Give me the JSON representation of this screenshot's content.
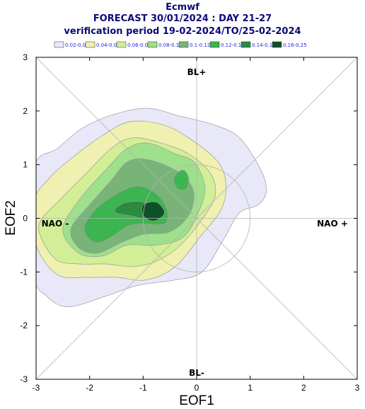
{
  "title": {
    "line1": "Ecmwf",
    "line2": "FORECAST 30/01/2024 : DAY 21-27",
    "line3": "verification period 19-02-2024/TO/25-02-2024"
  },
  "legend": {
    "entries": [
      {
        "label": "0.02-0.04",
        "color": "#e8e8f8"
      },
      {
        "label": "0.04-0.06",
        "color": "#f0f0b0"
      },
      {
        "label": "0.06-0.08",
        "color": "#d2ee96"
      },
      {
        "label": "0.08-0.1",
        "color": "#9ee08c"
      },
      {
        "label": "0.1-0.12",
        "color": "#78b478"
      },
      {
        "label": "0.12-0.14",
        "color": "#3cb450"
      },
      {
        "label": "0.14-0.16",
        "color": "#2a8c3c"
      },
      {
        "label": "0.16-0.25",
        "color": "#0f5028"
      }
    ]
  },
  "regions": {
    "top": "BL+",
    "bottom": "BL-",
    "left": "NAO -",
    "right": "NAO +"
  },
  "chart_data": {
    "type": "contour",
    "xlabel": "EOF1",
    "ylabel": "EOF2",
    "xlim": [
      -3,
      3
    ],
    "ylim": [
      -3,
      3
    ],
    "x_ticks": [
      "-3",
      "-2",
      "-1",
      "0",
      "1",
      "2",
      "3"
    ],
    "y_ticks": [
      "-3",
      "-2",
      "-1",
      "0",
      "1",
      "2",
      "3"
    ],
    "reference_circle_radius": 1,
    "levels": [
      {
        "range": "0.02-0.04",
        "color": "#e8e8f8",
        "boundary": [
          [
            -3.05,
            0.9
          ],
          [
            -2.6,
            1.3
          ],
          [
            -2.1,
            1.7
          ],
          [
            -1.5,
            1.95
          ],
          [
            -0.9,
            2.05
          ],
          [
            -0.3,
            1.9
          ],
          [
            0.3,
            1.75
          ],
          [
            0.8,
            1.5
          ],
          [
            1.2,
            0.9
          ],
          [
            1.3,
            0.5
          ],
          [
            1.15,
            0.25
          ],
          [
            0.8,
            0.1
          ],
          [
            0.5,
            -0.4
          ],
          [
            0.1,
            -1.0
          ],
          [
            -0.4,
            -1.15
          ],
          [
            -1.1,
            -1.25
          ],
          [
            -1.7,
            -1.45
          ],
          [
            -2.4,
            -1.65
          ],
          [
            -2.8,
            -1.45
          ],
          [
            -3.05,
            -1.0
          ]
        ]
      },
      {
        "range": "0.04-0.06",
        "color": "#f0f0b0",
        "boundary": [
          [
            -3.05,
            0.3
          ],
          [
            -2.75,
            0.75
          ],
          [
            -2.3,
            1.15
          ],
          [
            -1.75,
            1.55
          ],
          [
            -1.25,
            1.8
          ],
          [
            -0.65,
            1.75
          ],
          [
            -0.15,
            1.5
          ],
          [
            0.4,
            1.05
          ],
          [
            0.55,
            0.6
          ],
          [
            0.45,
            0.15
          ],
          [
            0.1,
            -0.3
          ],
          [
            -0.4,
            -0.9
          ],
          [
            -0.95,
            -1.15
          ],
          [
            -1.5,
            -1.1
          ],
          [
            -2.05,
            -1.1
          ],
          [
            -2.6,
            -1.05
          ],
          [
            -3.0,
            -0.5
          ]
        ]
      },
      {
        "range": "0.06-0.08",
        "color": "#d2ee96",
        "boundary": [
          [
            -2.95,
            -0.15
          ],
          [
            -2.55,
            0.35
          ],
          [
            -2.05,
            0.85
          ],
          [
            -1.6,
            1.3
          ],
          [
            -1.2,
            1.5
          ],
          [
            -0.65,
            1.4
          ],
          [
            -0.15,
            1.2
          ],
          [
            0.25,
            0.85
          ],
          [
            0.35,
            0.45
          ],
          [
            0.15,
            0.05
          ],
          [
            -0.3,
            -0.5
          ],
          [
            -0.75,
            -0.8
          ],
          [
            -1.2,
            -0.9
          ],
          [
            -1.7,
            -0.85
          ],
          [
            -2.2,
            -0.85
          ],
          [
            -2.65,
            -0.75
          ]
        ]
      },
      {
        "range": "0.08-0.1",
        "color": "#9ee08c",
        "boundary": [
          [
            -2.5,
            -0.2
          ],
          [
            -2.15,
            0.4
          ],
          [
            -1.7,
            0.9
          ],
          [
            -1.3,
            1.3
          ],
          [
            -0.9,
            1.4
          ],
          [
            -0.4,
            1.2
          ],
          [
            -0.05,
            1.05
          ],
          [
            0.15,
            0.6
          ],
          [
            0.05,
            0.15
          ],
          [
            -0.25,
            -0.35
          ],
          [
            -0.75,
            -0.5
          ],
          [
            -1.3,
            -0.5
          ],
          [
            -1.75,
            -0.7
          ],
          [
            -2.2,
            -0.65
          ]
        ]
      },
      {
        "range": "0.1-0.12",
        "color": "#78b478",
        "boundary": [
          [
            -2.35,
            -0.2
          ],
          [
            -2.0,
            0.25
          ],
          [
            -1.6,
            0.7
          ],
          [
            -1.3,
            1.05
          ],
          [
            -0.95,
            1.1
          ],
          [
            -0.5,
            0.95
          ],
          [
            -0.2,
            0.75
          ],
          [
            -0.05,
            0.45
          ],
          [
            -0.15,
            0.05
          ],
          [
            -0.5,
            -0.25
          ],
          [
            -1.0,
            -0.3
          ],
          [
            -1.4,
            -0.45
          ],
          [
            -1.85,
            -0.65
          ],
          [
            -2.2,
            -0.55
          ]
        ]
      },
      {
        "range": "0.12-0.14",
        "color": "#3cb450",
        "boundary": [
          [
            -2.1,
            -0.2
          ],
          [
            -1.9,
            0.15
          ],
          [
            -1.5,
            0.45
          ],
          [
            -1.1,
            0.6
          ],
          [
            -0.75,
            0.45
          ],
          [
            -0.55,
            0.15
          ],
          [
            -0.6,
            -0.1
          ],
          [
            -1.0,
            -0.1
          ],
          [
            -1.3,
            -0.15
          ],
          [
            -1.6,
            -0.35
          ],
          [
            -1.9,
            -0.45
          ]
        ]
      },
      {
        "range": "0.12-0.14",
        "color": "#3cb450",
        "boundary": [
          [
            -0.4,
            0.8
          ],
          [
            -0.25,
            0.9
          ],
          [
            -0.15,
            0.75
          ],
          [
            -0.2,
            0.55
          ],
          [
            -0.35,
            0.55
          ],
          [
            -0.42,
            0.68
          ]
        ]
      },
      {
        "range": "0.14-0.16",
        "color": "#2a8c3c",
        "boundary": [
          [
            -1.5,
            0.2
          ],
          [
            -1.3,
            0.3
          ],
          [
            -1.0,
            0.3
          ],
          [
            -0.85,
            0.15
          ],
          [
            -0.95,
            0.0
          ],
          [
            -1.25,
            0.05
          ],
          [
            -1.5,
            0.1
          ]
        ]
      },
      {
        "range": "0.16-0.25",
        "color": "#0f5028",
        "boundary": [
          [
            -1.0,
            0.25
          ],
          [
            -0.75,
            0.3
          ],
          [
            -0.6,
            0.1
          ],
          [
            -0.8,
            -0.05
          ],
          [
            -1.0,
            0.05
          ]
        ]
      }
    ]
  }
}
